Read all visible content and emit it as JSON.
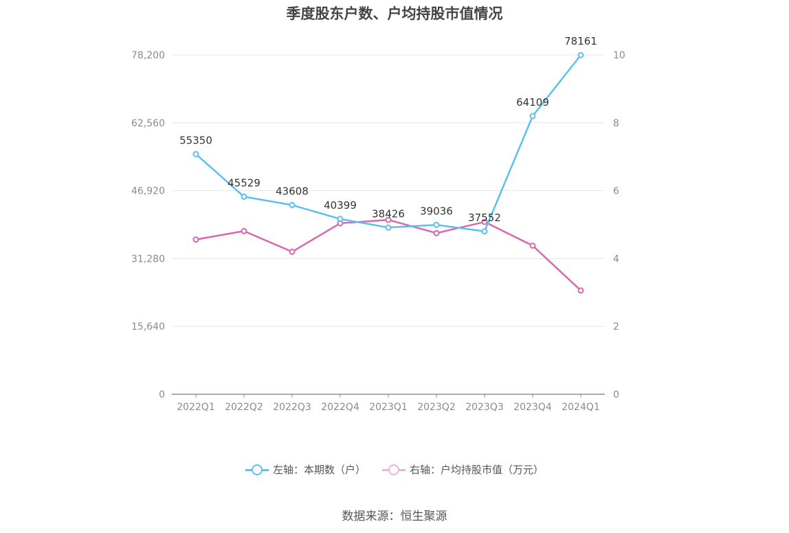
{
  "chart_data": {
    "type": "line",
    "title": "季度股东户数、户均持股市值情况",
    "categories": [
      "2022Q1",
      "2022Q2",
      "2022Q3",
      "2022Q4",
      "2023Q1",
      "2023Q2",
      "2023Q3",
      "2023Q4",
      "2024Q1"
    ],
    "y_left": {
      "ticks": [
        "0",
        "15,640",
        "31,280",
        "46,920",
        "62,560",
        "78,200"
      ],
      "ylim": [
        0,
        78200
      ]
    },
    "y_right": {
      "ticks": [
        "0",
        "2",
        "4",
        "6",
        "8",
        "10"
      ],
      "ylim": [
        0,
        10
      ]
    },
    "series": [
      {
        "name": "左轴：本期数（户）",
        "axis": "left",
        "color": "#5bc0f0",
        "values": [
          55350,
          45529,
          43608,
          40399,
          38426,
          39036,
          37552,
          64109,
          78161
        ],
        "labels": [
          "55350",
          "45529",
          "43608",
          "40399",
          "38426",
          "39036",
          "37552",
          "64109",
          "78161"
        ]
      },
      {
        "name": "右轴：户均持股市值（万元）",
        "axis": "right",
        "color": "#d966b0",
        "values": [
          4.56,
          4.81,
          4.2,
          5.04,
          5.14,
          4.75,
          5.08,
          4.38,
          3.06
        ]
      }
    ],
    "grid": true,
    "legend_position": "bottom"
  },
  "source": "数据来源：恒生聚源"
}
